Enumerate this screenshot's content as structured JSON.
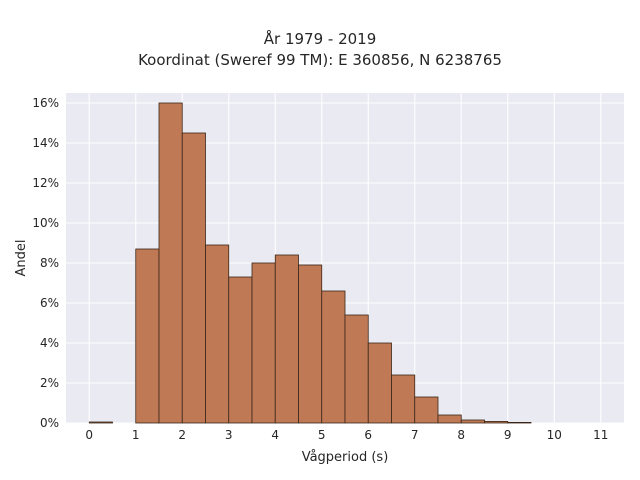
{
  "chart_data": {
    "type": "bar",
    "title": "År 1979 - 2019",
    "subtitle": "Koordinat (Sweref 99 TM): E 360856, N 6238765",
    "xlabel": "Vågperiod (s)",
    "ylabel": "Andel",
    "xlim": [
      -0.5,
      11.5
    ],
    "ylim": [
      0,
      16.5
    ],
    "xticks": [
      0,
      1,
      2,
      3,
      4,
      5,
      6,
      7,
      8,
      9,
      10,
      11
    ],
    "yticks": [
      0,
      2,
      4,
      6,
      8,
      10,
      12,
      14,
      16
    ],
    "ytick_format": "%",
    "bin_width": 0.5,
    "bins": [
      {
        "x0": 0.0,
        "x1": 0.5,
        "value": 0.05
      },
      {
        "x0": 0.5,
        "x1": 1.0,
        "value": 0.0
      },
      {
        "x0": 1.0,
        "x1": 1.5,
        "value": 8.7
      },
      {
        "x0": 1.5,
        "x1": 2.0,
        "value": 16.0
      },
      {
        "x0": 2.0,
        "x1": 2.5,
        "value": 14.5
      },
      {
        "x0": 2.5,
        "x1": 3.0,
        "value": 8.9
      },
      {
        "x0": 3.0,
        "x1": 3.5,
        "value": 7.3
      },
      {
        "x0": 3.5,
        "x1": 4.0,
        "value": 8.0
      },
      {
        "x0": 4.0,
        "x1": 4.5,
        "value": 8.4
      },
      {
        "x0": 4.5,
        "x1": 5.0,
        "value": 7.9
      },
      {
        "x0": 5.0,
        "x1": 5.5,
        "value": 6.6
      },
      {
        "x0": 5.5,
        "x1": 6.0,
        "value": 5.4
      },
      {
        "x0": 6.0,
        "x1": 6.5,
        "value": 4.0
      },
      {
        "x0": 6.5,
        "x1": 7.0,
        "value": 2.4
      },
      {
        "x0": 7.0,
        "x1": 7.5,
        "value": 1.3
      },
      {
        "x0": 7.5,
        "x1": 8.0,
        "value": 0.4
      },
      {
        "x0": 8.0,
        "x1": 8.5,
        "value": 0.15
      },
      {
        "x0": 8.5,
        "x1": 9.0,
        "value": 0.08
      },
      {
        "x0": 9.0,
        "x1": 9.5,
        "value": 0.03
      }
    ],
    "grid": true,
    "colors": {
      "bar_fill": "#bf7a55",
      "bar_edge": "#3a2618",
      "plot_background": "#eaeaf2",
      "grid": "#ffffff"
    }
  }
}
